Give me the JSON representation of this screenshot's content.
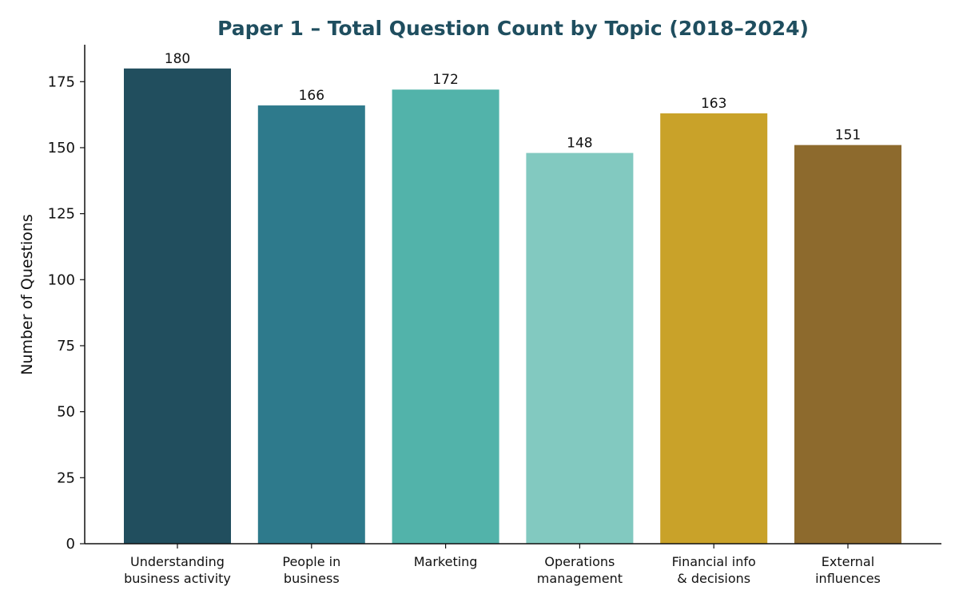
{
  "chart_data": {
    "type": "bar",
    "title": "Paper 1 – Total Question Count by Topic (2018–2024)",
    "xlabel": "",
    "ylabel": "Number of Questions",
    "categories": [
      [
        "Understanding",
        "business activity"
      ],
      [
        "People in",
        "business"
      ],
      [
        "Marketing"
      ],
      [
        "Operations",
        "management"
      ],
      [
        "Financial info",
        "& decisions"
      ],
      [
        "External",
        "influences"
      ]
    ],
    "values": [
      180,
      166,
      172,
      148,
      163,
      151
    ],
    "data_labels": [
      "180",
      "166",
      "172",
      "148",
      "163",
      "151"
    ],
    "colors": [
      "#214e5e",
      "#2e7a8c",
      "#52b3aa",
      "#82c9c0",
      "#c9a229",
      "#8d6a2d"
    ],
    "ylim": [
      0,
      189
    ],
    "yticks": [
      0,
      25,
      50,
      75,
      100,
      125,
      150,
      175
    ],
    "title_color": "#1f4e5f",
    "grid": false,
    "legend": "none"
  }
}
